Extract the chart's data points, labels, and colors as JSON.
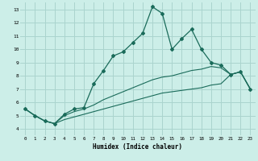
{
  "xlabel": "Humidex (Indice chaleur)",
  "background_color": "#cceee8",
  "grid_color": "#aad4ce",
  "line_color": "#1a6b5a",
  "xlim": [
    -0.5,
    23.5
  ],
  "ylim": [
    3.5,
    13.5
  ],
  "xticks": [
    0,
    1,
    2,
    3,
    4,
    5,
    6,
    7,
    8,
    9,
    10,
    11,
    12,
    13,
    14,
    15,
    16,
    17,
    18,
    19,
    20,
    21,
    22,
    23
  ],
  "yticks": [
    4,
    5,
    6,
    7,
    8,
    9,
    10,
    11,
    12,
    13
  ],
  "series1_x": [
    0,
    1,
    2,
    3,
    4,
    5,
    6,
    7,
    8,
    9,
    10,
    11,
    12,
    13,
    14,
    15,
    16,
    17,
    18,
    19,
    20,
    21,
    22,
    23
  ],
  "series1_y": [
    5.5,
    5.0,
    4.6,
    4.4,
    5.1,
    5.5,
    5.6,
    7.4,
    8.4,
    9.5,
    9.8,
    10.5,
    11.2,
    13.2,
    12.7,
    10.0,
    10.8,
    11.5,
    10.0,
    9.0,
    8.8,
    8.1,
    8.3,
    7.0
  ],
  "series2_x": [
    0,
    1,
    2,
    3,
    4,
    5,
    6,
    7,
    8,
    9,
    10,
    11,
    12,
    13,
    14,
    15,
    16,
    17,
    18,
    19,
    20,
    21,
    22,
    23
  ],
  "series2_y": [
    5.5,
    5.0,
    4.6,
    4.4,
    5.0,
    5.3,
    5.5,
    5.8,
    6.2,
    6.5,
    6.8,
    7.1,
    7.4,
    7.7,
    7.9,
    8.0,
    8.2,
    8.4,
    8.5,
    8.7,
    8.6,
    8.1,
    8.3,
    7.0
  ],
  "series3_x": [
    0,
    1,
    2,
    3,
    4,
    5,
    6,
    7,
    8,
    9,
    10,
    11,
    12,
    13,
    14,
    15,
    16,
    17,
    18,
    19,
    20,
    21,
    22,
    23
  ],
  "series3_y": [
    5.5,
    5.0,
    4.6,
    4.4,
    4.7,
    4.9,
    5.1,
    5.3,
    5.5,
    5.7,
    5.9,
    6.1,
    6.3,
    6.5,
    6.7,
    6.8,
    6.9,
    7.0,
    7.1,
    7.3,
    7.4,
    8.1,
    8.3,
    7.0
  ]
}
